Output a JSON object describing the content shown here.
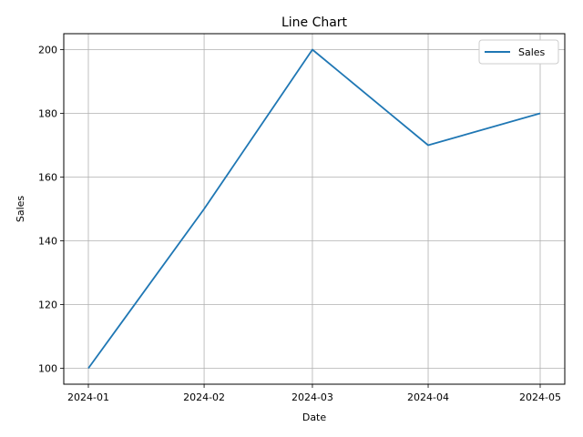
{
  "chart_data": {
    "type": "line",
    "title": "Line Chart",
    "xlabel": "Date",
    "ylabel": "Sales",
    "x": [
      "2024-01-01",
      "2024-02-01",
      "2024-03-01",
      "2024-04-01",
      "2024-05-01"
    ],
    "x_tick_labels": [
      "2024-01",
      "2024-02",
      "2024-03",
      "2024-04",
      "2024-05"
    ],
    "series": [
      {
        "name": "Sales",
        "values": [
          100,
          150,
          200,
          170,
          180
        ],
        "color": "#1f77b4"
      }
    ],
    "ylim": [
      95,
      205
    ],
    "y_ticks": [
      100,
      120,
      140,
      160,
      180,
      200
    ],
    "grid": true,
    "legend": "top-right"
  }
}
